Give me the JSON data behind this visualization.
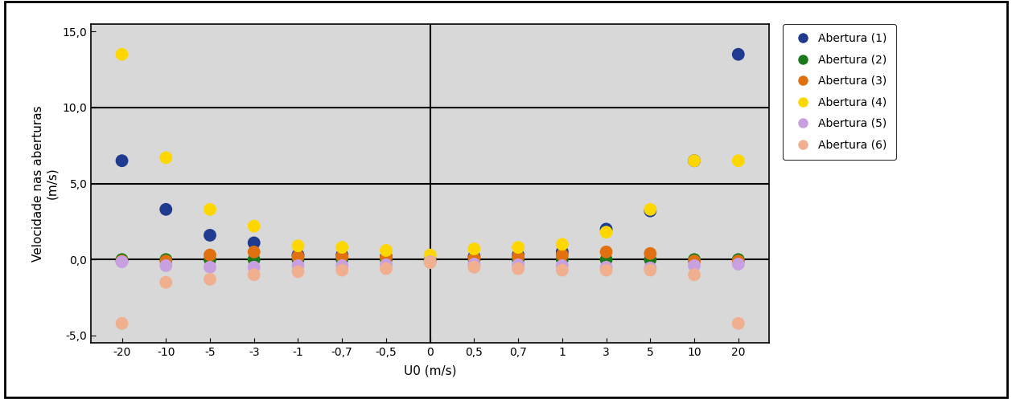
{
  "x_labels": [
    "-20",
    "-10",
    "-5",
    "-3",
    "-1",
    "-0,7",
    "-0,5",
    "0",
    "0,5",
    "0,7",
    "1",
    "3",
    "5",
    "10",
    "20"
  ],
  "x_positions": [
    -20,
    -10,
    -5,
    -3,
    -1,
    -0.7,
    -0.5,
    0,
    0.5,
    0.7,
    1,
    3,
    5,
    10,
    20
  ],
  "series": [
    {
      "name": "Abertura (1)",
      "color": "#1F3A8F",
      "values": [
        6.5,
        3.3,
        1.6,
        1.1,
        0.3,
        0.3,
        0.2,
        0.0,
        0.2,
        0.3,
        0.5,
        2.0,
        3.2,
        6.5,
        13.5
      ]
    },
    {
      "name": "Abertura (2)",
      "color": "#1A7A1A",
      "values": [
        0.0,
        0.0,
        0.0,
        0.0,
        0.0,
        0.0,
        0.0,
        0.0,
        0.0,
        0.0,
        0.0,
        0.0,
        0.0,
        0.0,
        0.0
      ]
    },
    {
      "name": "Abertura (3)",
      "color": "#E07010",
      "values": [
        -0.1,
        -0.1,
        0.3,
        0.5,
        0.2,
        0.2,
        0.15,
        0.0,
        0.1,
        0.2,
        0.3,
        0.5,
        0.4,
        -0.1,
        -0.1
      ]
    },
    {
      "name": "Abertura (4)",
      "color": "#FFD700",
      "values": [
        13.5,
        6.7,
        3.3,
        2.2,
        0.9,
        0.8,
        0.6,
        0.3,
        0.7,
        0.8,
        1.0,
        1.8,
        3.3,
        6.5,
        6.5
      ]
    },
    {
      "name": "Abertura (5)",
      "color": "#C8A0E0",
      "values": [
        -0.15,
        -0.4,
        -0.5,
        -0.5,
        -0.4,
        -0.4,
        -0.35,
        -0.15,
        -0.3,
        -0.35,
        -0.4,
        -0.5,
        -0.55,
        -0.4,
        -0.3
      ]
    },
    {
      "name": "Abertura (6)",
      "color": "#F0B090",
      "values": [
        -4.2,
        -1.5,
        -1.3,
        -1.0,
        -0.8,
        -0.7,
        -0.6,
        -0.2,
        -0.5,
        -0.6,
        -0.7,
        -0.7,
        -0.7,
        -1.0,
        -4.2
      ]
    }
  ],
  "ylabel": "Velocidade nas aberturas\n(m/s)",
  "xlabel": "U0 (m/s)",
  "ylim": [
    -5.5,
    15.5
  ],
  "yticks": [
    -5.0,
    0.0,
    5.0,
    10.0,
    15.0
  ],
  "ytick_labels": [
    "-5,0",
    "0,0",
    "5,0",
    "10,0",
    "15,0"
  ],
  "hlines": [
    0.0,
    5.0,
    10.0
  ],
  "vline_idx": 7,
  "fig_bg_color": "#FFFFFF",
  "plot_bg_color": "#D8D8D8",
  "marker_size": 130,
  "legend_fontsize": 10,
  "axis_fontsize": 11,
  "tick_fontsize": 10
}
